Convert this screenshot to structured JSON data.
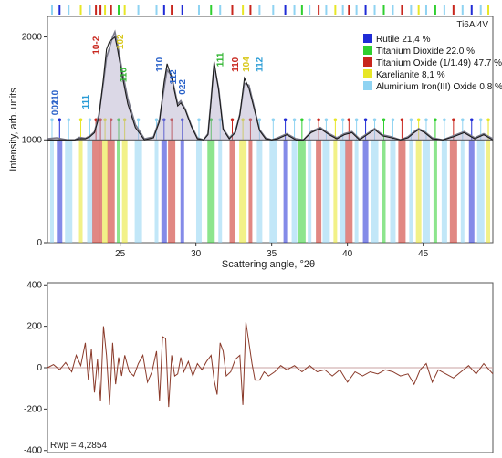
{
  "chart_data": [
    {
      "type": "line",
      "sample_label": "Ti6Al4V",
      "xlabel": "Scattering angle, °2θ",
      "ylabel": "Intensity, arb. units",
      "xlim": [
        20.2,
        49.6
      ],
      "ylim": [
        0,
        2200
      ],
      "x_ticks": [
        25,
        30,
        35,
        40,
        45
      ],
      "y_ticks": [
        0,
        1000,
        2000
      ],
      "baseline": 1000,
      "legend_position": "top-right",
      "phases": [
        {
          "name": "Rutile 21,4 %",
          "color": "#1f2bd6"
        },
        {
          "name": "Titanium Dioxide 22.0 %",
          "color": "#2fcf2f"
        },
        {
          "name": "Titanium Oxide (1/1.49) 47.7 %",
          "color": "#c8261d"
        },
        {
          "name": "Karelianite 8,1 %",
          "color": "#e7e626"
        },
        {
          "name": "Aluminium Iron(III) Oxide 0.8 %",
          "color": "#8fd3f2"
        }
      ],
      "peak_labels": [
        {
          "text": "110",
          "x": 20.9,
          "color": "#2a62c9",
          "y": 1340
        },
        {
          "text": "002",
          "x": 20.9,
          "color": "#2a62c9",
          "y": 1240
        },
        {
          "text": "111",
          "x": 22.9,
          "color": "#2a9cd6",
          "y": 1300
        },
        {
          "text": "10-2",
          "x": 23.6,
          "color": "#c8261d",
          "y": 1830
        },
        {
          "text": "102",
          "x": 25.2,
          "color": "#d8c81a",
          "y": 1880
        },
        {
          "text": "110",
          "x": 25.4,
          "color": "#2fb52f",
          "y": 1560
        },
        {
          "text": "110",
          "x": 27.8,
          "color": "#2a62c9",
          "y": 1660
        },
        {
          "text": "112",
          "x": 28.7,
          "color": "#2a62c9",
          "y": 1540
        },
        {
          "text": "022",
          "x": 29.3,
          "color": "#2a62c9",
          "y": 1440
        },
        {
          "text": "111",
          "x": 31.8,
          "color": "#2fb52f",
          "y": 1710
        },
        {
          "text": "110",
          "x": 32.8,
          "color": "#c8261d",
          "y": 1660
        },
        {
          "text": "104",
          "x": 33.5,
          "color": "#d8c81a",
          "y": 1660
        },
        {
          "text": "112",
          "x": 34.4,
          "color": "#2a9cd6",
          "y": 1660
        }
      ],
      "series": [
        {
          "name": "observed",
          "color": "#7a7a8a",
          "x": [
            20.2,
            20.8,
            21.5,
            22.0,
            22.3,
            22.7,
            23.0,
            23.3,
            23.6,
            23.9,
            24.1,
            24.3,
            24.5,
            24.65,
            24.8,
            25.1,
            25.5,
            26.0,
            26.6,
            27.2,
            27.6,
            27.9,
            28.1,
            28.4,
            28.8,
            29.0,
            29.3,
            29.7,
            30.1,
            30.5,
            30.8,
            31.0,
            31.2,
            31.5,
            31.8,
            32.2,
            32.6,
            32.9,
            33.2,
            33.5,
            33.8,
            34.2,
            34.6,
            35.0,
            35.4,
            36.0,
            36.6,
            37.1,
            37.6,
            38.2,
            38.8,
            39.3,
            39.8,
            40.3,
            40.8,
            41.3,
            41.8,
            42.3,
            42.9,
            43.5,
            44.0,
            44.4,
            44.7,
            45.1,
            45.6,
            46.3,
            47.0,
            47.7,
            48.4,
            49.0,
            49.6
          ],
          "y": [
            1010,
            1020,
            1000,
            1000,
            1025,
            1015,
            1040,
            1080,
            1250,
            1560,
            1800,
            1900,
            2000,
            2050,
            1950,
            1700,
            1400,
            1150,
            1010,
            1030,
            1200,
            1500,
            1680,
            1620,
            1350,
            1380,
            1300,
            1140,
            1020,
            1000,
            1060,
            1400,
            1720,
            1500,
            1110,
            1020,
            1080,
            1250,
            1550,
            1530,
            1350,
            1100,
            1020,
            1000,
            1020,
            1060,
            1010,
            1000,
            1080,
            1120,
            1060,
            1020,
            1060,
            1080,
            1010,
            1060,
            1110,
            1050,
            1030,
            1000,
            1030,
            1080,
            1110,
            1080,
            1020,
            1000,
            1040,
            1080,
            1020,
            1060,
            1010
          ]
        },
        {
          "name": "calculated",
          "color": "#1a1a1a",
          "x": [
            20.2,
            20.8,
            21.5,
            22.0,
            22.3,
            22.7,
            23.0,
            23.3,
            23.6,
            23.9,
            24.1,
            24.3,
            24.5,
            24.65,
            24.8,
            25.1,
            25.5,
            26.0,
            26.6,
            27.2,
            27.6,
            27.9,
            28.1,
            28.4,
            28.8,
            29.0,
            29.3,
            29.7,
            30.1,
            30.5,
            30.8,
            31.0,
            31.2,
            31.5,
            31.8,
            32.2,
            32.6,
            32.9,
            33.2,
            33.5,
            33.8,
            34.2,
            34.6,
            35.0,
            35.4,
            36.0,
            36.6,
            37.1,
            37.6,
            38.2,
            38.8,
            39.3,
            39.8,
            40.3,
            40.8,
            41.3,
            41.8,
            42.3,
            42.9,
            43.5,
            44.0,
            44.4,
            44.7,
            45.1,
            45.6,
            46.3,
            47.0,
            47.7,
            48.4,
            49.0,
            49.6
          ],
          "y": [
            1000,
            1000,
            1000,
            1000,
            1010,
            1010,
            1030,
            1070,
            1220,
            1600,
            1880,
            1960,
            1980,
            2000,
            1900,
            1650,
            1350,
            1120,
            1000,
            1020,
            1180,
            1560,
            1740,
            1600,
            1330,
            1360,
            1290,
            1130,
            1010,
            1000,
            1050,
            1380,
            1760,
            1480,
            1100,
            1010,
            1070,
            1240,
            1600,
            1500,
            1330,
            1090,
            1010,
            1000,
            1010,
            1050,
            1000,
            1000,
            1070,
            1110,
            1050,
            1010,
            1050,
            1070,
            1000,
            1050,
            1100,
            1040,
            1020,
            1000,
            1020,
            1070,
            1100,
            1070,
            1010,
            1000,
            1030,
            1070,
            1010,
            1050,
            1000
          ]
        }
      ],
      "reflection_markers": [
        {
          "x": 20.5,
          "phase": 4
        },
        {
          "x": 21.0,
          "phase": 0
        },
        {
          "x": 21.6,
          "phase": 4
        },
        {
          "x": 22.4,
          "phase": 3
        },
        {
          "x": 23.0,
          "phase": 4
        },
        {
          "x": 23.4,
          "phase": 2
        },
        {
          "x": 23.7,
          "phase": 2
        },
        {
          "x": 24.0,
          "phase": 3
        },
        {
          "x": 24.4,
          "phase": 2
        },
        {
          "x": 24.9,
          "phase": 1
        },
        {
          "x": 25.3,
          "phase": 3
        },
        {
          "x": 26.2,
          "phase": 4
        },
        {
          "x": 27.4,
          "phase": 4
        },
        {
          "x": 27.9,
          "phase": 0
        },
        {
          "x": 28.4,
          "phase": 2
        },
        {
          "x": 29.1,
          "phase": 0
        },
        {
          "x": 30.2,
          "phase": 4
        },
        {
          "x": 31.0,
          "phase": 1
        },
        {
          "x": 31.6,
          "phase": 4
        },
        {
          "x": 32.4,
          "phase": 2
        },
        {
          "x": 33.1,
          "phase": 3
        },
        {
          "x": 33.6,
          "phase": 2
        },
        {
          "x": 34.2,
          "phase": 4
        },
        {
          "x": 35.1,
          "phase": 4
        },
        {
          "x": 35.9,
          "phase": 0
        },
        {
          "x": 36.5,
          "phase": 4
        },
        {
          "x": 37.0,
          "phase": 1
        },
        {
          "x": 37.5,
          "phase": 4
        },
        {
          "x": 38.1,
          "phase": 2
        },
        {
          "x": 38.6,
          "phase": 4
        },
        {
          "x": 39.2,
          "phase": 3
        },
        {
          "x": 39.7,
          "phase": 4
        },
        {
          "x": 40.1,
          "phase": 2
        },
        {
          "x": 40.6,
          "phase": 4
        },
        {
          "x": 41.2,
          "phase": 0
        },
        {
          "x": 41.8,
          "phase": 4
        },
        {
          "x": 42.4,
          "phase": 1
        },
        {
          "x": 43.0,
          "phase": 4
        },
        {
          "x": 43.6,
          "phase": 2
        },
        {
          "x": 44.2,
          "phase": 4
        },
        {
          "x": 44.7,
          "phase": 3
        },
        {
          "x": 45.2,
          "phase": 4
        },
        {
          "x": 45.8,
          "phase": 1
        },
        {
          "x": 46.4,
          "phase": 4
        },
        {
          "x": 47.0,
          "phase": 2
        },
        {
          "x": 47.6,
          "phase": 4
        },
        {
          "x": 48.2,
          "phase": 0
        },
        {
          "x": 48.8,
          "phase": 4
        },
        {
          "x": 49.3,
          "phase": 3
        }
      ]
    },
    {
      "type": "line",
      "title": "",
      "annotation": "Rwp = 4,2854",
      "xlabel": "",
      "ylabel": "",
      "xlim": [
        20.2,
        49.6
      ],
      "ylim": [
        -410,
        410
      ],
      "y_ticks": [
        -400,
        -200,
        0,
        200,
        400
      ],
      "series": [
        {
          "name": "difference",
          "color": "#8a3a2a",
          "x": [
            20.2,
            20.6,
            21.0,
            21.4,
            21.8,
            22.1,
            22.4,
            22.7,
            22.9,
            23.1,
            23.3,
            23.5,
            23.7,
            23.9,
            24.1,
            24.3,
            24.5,
            24.7,
            24.9,
            25.1,
            25.3,
            25.6,
            25.9,
            26.2,
            26.5,
            26.8,
            27.1,
            27.4,
            27.6,
            27.8,
            28.0,
            28.2,
            28.4,
            28.6,
            28.8,
            29.0,
            29.2,
            29.5,
            29.8,
            30.1,
            30.4,
            30.7,
            31.0,
            31.2,
            31.4,
            31.6,
            31.8,
            32.0,
            32.3,
            32.6,
            32.9,
            33.1,
            33.3,
            33.5,
            33.7,
            33.9,
            34.2,
            34.5,
            34.8,
            35.2,
            35.6,
            36.0,
            36.5,
            37.0,
            37.5,
            38.0,
            38.5,
            39.0,
            39.5,
            40.0,
            40.5,
            41.0,
            41.5,
            42.0,
            42.5,
            43.0,
            43.5,
            44.0,
            44.4,
            44.8,
            45.2,
            45.6,
            46.0,
            46.5,
            47.0,
            47.5,
            48.0,
            48.5,
            49.0,
            49.6
          ],
          "y": [
            0,
            15,
            -10,
            25,
            -20,
            60,
            10,
            120,
            -60,
            90,
            -120,
            40,
            -160,
            200,
            60,
            -180,
            120,
            -80,
            50,
            -40,
            60,
            -20,
            -40,
            20,
            60,
            -70,
            -20,
            80,
            -160,
            150,
            140,
            -190,
            60,
            -40,
            -30,
            50,
            -20,
            30,
            -40,
            20,
            -10,
            30,
            60,
            -60,
            -130,
            120,
            80,
            -40,
            -20,
            40,
            60,
            -180,
            220,
            120,
            20,
            -60,
            -60,
            -20,
            -40,
            -20,
            10,
            -10,
            10,
            -20,
            10,
            -20,
            -10,
            -40,
            -10,
            -70,
            -20,
            -40,
            -20,
            -30,
            -10,
            -20,
            -40,
            -30,
            -80,
            -10,
            20,
            -70,
            -10,
            -30,
            -50,
            -20,
            10,
            -30,
            20,
            -30
          ]
        }
      ]
    }
  ]
}
